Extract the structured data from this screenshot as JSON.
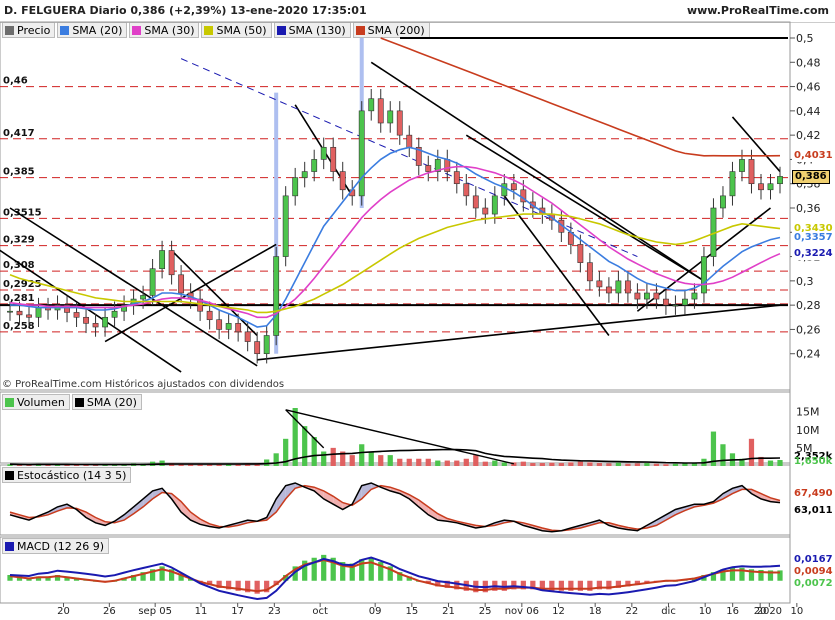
{
  "header": {
    "title": "D. FELGUERA Diario 0,386 (+2,39%) 13-ene-2020 17:35:01",
    "site": "www.ProRealTime.com"
  },
  "price_legend": [
    {
      "label": "Precio",
      "color": "#6d6d6d"
    },
    {
      "label": "SMA (20)",
      "color": "#3b7de0"
    },
    {
      "label": "SMA (30)",
      "color": "#e040c8"
    },
    {
      "label": "SMA (50)",
      "color": "#c8c800"
    },
    {
      "label": "SMA (130)",
      "color": "#1a1ab0"
    },
    {
      "label": "SMA (200)",
      "color": "#c83c1e"
    }
  ],
  "copyright": "© ProRealTime.com Históricos ajustados con dividendos",
  "volume_legend": {
    "label": "Volumen",
    "sma": "SMA (20)"
  },
  "stoch_legend": {
    "label": "Estocástico (14 3 5)"
  },
  "macd_legend": {
    "label": "MACD (12 26 9)"
  },
  "colors": {
    "up": "#4cc44c",
    "down": "#e06060",
    "sma20": "#3b7de0",
    "sma30": "#e040c8",
    "sma50": "#c8c800",
    "sma130": "#1a1ab0",
    "sma200": "#c83c1e"
  },
  "chart_data": [
    {
      "type": "line",
      "panel": "price",
      "ylim": [
        0.22,
        0.5
      ],
      "y_ticks": [
        "0,5",
        "0,48",
        "0,46",
        "0,44",
        "0,42",
        "0,4",
        "0,38",
        "0,36",
        "0,34",
        "0,32",
        "0,3",
        "0,28",
        "0,26",
        "0,24"
      ],
      "level_labels": [
        "0,46",
        "0,417",
        "0,385",
        "0,3515",
        "0,329",
        "0,308",
        "0,2925",
        "0,281",
        "0,258"
      ],
      "x_labels": [
        "20",
        "26",
        "sep 05",
        "11",
        "17",
        "23",
        "oct",
        "09",
        "15",
        "21",
        "25",
        "nov 06",
        "12",
        "18",
        "22",
        "dic",
        "10",
        "16",
        "20",
        "2020",
        "10"
      ],
      "value_badges": [
        {
          "text": "0,4031",
          "color": "#c83c1e"
        },
        {
          "text": "0,386",
          "color": "#000000"
        },
        {
          "text": "0,3430",
          "color": "#c8c800"
        },
        {
          "text": "0,3357",
          "color": "#3b7de0"
        },
        {
          "text": "0,3224",
          "color": "#1a1ab0"
        }
      ],
      "series": [
        {
          "name": "Precio",
          "values": [
            0.275,
            0.272,
            0.27,
            0.278,
            0.276,
            0.28,
            0.274,
            0.27,
            0.265,
            0.262,
            0.27,
            0.275,
            0.28,
            0.285,
            0.288,
            0.31,
            0.325,
            0.305,
            0.29,
            0.285,
            0.275,
            0.268,
            0.26,
            0.265,
            0.258,
            0.25,
            0.24,
            0.255,
            0.32,
            0.37,
            0.385,
            0.39,
            0.4,
            0.41,
            0.39,
            0.375,
            0.37,
            0.44,
            0.45,
            0.43,
            0.44,
            0.42,
            0.41,
            0.395,
            0.39,
            0.4,
            0.39,
            0.38,
            0.37,
            0.36,
            0.355,
            0.37,
            0.38,
            0.375,
            0.365,
            0.36,
            0.355,
            0.35,
            0.34,
            0.33,
            0.315,
            0.3,
            0.295,
            0.29,
            0.3,
            0.29,
            0.285,
            0.29,
            0.285,
            0.28,
            0.28,
            0.285,
            0.29,
            0.32,
            0.36,
            0.37,
            0.39,
            0.4,
            0.38,
            0.375,
            0.38,
            0.386
          ]
        },
        {
          "name": "SMA (20)",
          "values": [
            0.28,
            0.28,
            0.279,
            0.278,
            0.278,
            0.278,
            0.278,
            0.278,
            0.277,
            0.276,
            0.276,
            0.277,
            0.279,
            0.281,
            0.283,
            0.286,
            0.29,
            0.29,
            0.289,
            0.287,
            0.284,
            0.28,
            0.276,
            0.273,
            0.27,
            0.266,
            0.262,
            0.263,
            0.272,
            0.285,
            0.3,
            0.315,
            0.33,
            0.345,
            0.355,
            0.365,
            0.375,
            0.385,
            0.393,
            0.4,
            0.405,
            0.408,
            0.41,
            0.408,
            0.405,
            0.402,
            0.4,
            0.397,
            0.393,
            0.388,
            0.384,
            0.38,
            0.377,
            0.373,
            0.368,
            0.362,
            0.357,
            0.352,
            0.346,
            0.34,
            0.334,
            0.328,
            0.322,
            0.316,
            0.312,
            0.307,
            0.302,
            0.298,
            0.296,
            0.294,
            0.292,
            0.292,
            0.294,
            0.298,
            0.305,
            0.312,
            0.318,
            0.324,
            0.328,
            0.331,
            0.334,
            0.3357
          ]
        },
        {
          "name": "SMA (30)",
          "values": [
            0.282,
            0.281,
            0.28,
            0.28,
            0.279,
            0.279,
            0.279,
            0.279,
            0.278,
            0.278,
            0.278,
            0.278,
            0.279,
            0.28,
            0.281,
            0.283,
            0.285,
            0.286,
            0.286,
            0.285,
            0.284,
            0.282,
            0.279,
            0.277,
            0.275,
            0.273,
            0.27,
            0.27,
            0.273,
            0.279,
            0.285,
            0.293,
            0.302,
            0.312,
            0.322,
            0.332,
            0.342,
            0.352,
            0.36,
            0.367,
            0.373,
            0.378,
            0.383,
            0.386,
            0.389,
            0.391,
            0.393,
            0.394,
            0.394,
            0.393,
            0.391,
            0.389,
            0.386,
            0.383,
            0.379,
            0.374,
            0.369,
            0.364,
            0.358,
            0.352,
            0.346,
            0.34,
            0.334,
            0.328,
            0.323,
            0.318,
            0.314,
            0.31,
            0.306,
            0.303,
            0.3,
            0.298,
            0.297,
            0.297,
            0.298,
            0.3,
            0.303,
            0.307,
            0.311,
            0.315,
            0.319,
            0.3224
          ]
        },
        {
          "name": "SMA (50)",
          "values": [
            0.305,
            0.302,
            0.3,
            0.298,
            0.296,
            0.294,
            0.292,
            0.29,
            0.288,
            0.286,
            0.285,
            0.284,
            0.283,
            0.283,
            0.283,
            0.283,
            0.283,
            0.283,
            0.283,
            0.282,
            0.281,
            0.28,
            0.279,
            0.278,
            0.277,
            0.276,
            0.274,
            0.274,
            0.275,
            0.277,
            0.279,
            0.282,
            0.285,
            0.289,
            0.293,
            0.297,
            0.302,
            0.307,
            0.312,
            0.317,
            0.322,
            0.327,
            0.331,
            0.335,
            0.338,
            0.341,
            0.344,
            0.346,
            0.348,
            0.35,
            0.351,
            0.352,
            0.353,
            0.354,
            0.355,
            0.355,
            0.355,
            0.355,
            0.354,
            0.353,
            0.351,
            0.349,
            0.347,
            0.344,
            0.341,
            0.338,
            0.336,
            0.334,
            0.332,
            0.331,
            0.33,
            0.331,
            0.333,
            0.336,
            0.339,
            0.342,
            0.345,
            0.347,
            0.346,
            0.345,
            0.344,
            0.343
          ]
        },
        {
          "name": "SMA (200)",
          "values": [
            null,
            null,
            null,
            null,
            null,
            null,
            null,
            null,
            null,
            null,
            null,
            null,
            null,
            null,
            null,
            null,
            null,
            null,
            null,
            null,
            null,
            null,
            null,
            null,
            null,
            null,
            null,
            null,
            null,
            null,
            null,
            null,
            null,
            null,
            null,
            null,
            null,
            null,
            null,
            0.5,
            0.497,
            0.494,
            0.491,
            0.488,
            0.485,
            0.482,
            0.479,
            0.476,
            0.473,
            0.47,
            0.467,
            0.464,
            0.461,
            0.458,
            0.455,
            0.452,
            0.449,
            0.446,
            0.443,
            0.44,
            0.437,
            0.434,
            0.431,
            0.428,
            0.425,
            0.422,
            0.419,
            0.416,
            0.413,
            0.41,
            0.407,
            0.405,
            0.404,
            0.403,
            0.4031,
            0.403,
            0.403,
            0.403,
            0.403,
            0.403,
            0.403,
            0.4031
          ]
        }
      ]
    },
    {
      "type": "bar",
      "panel": "volume",
      "y_ticks": [
        "15M",
        "10M",
        "5M"
      ],
      "value_badges": [
        {
          "text": "2,352k",
          "color": "#000"
        },
        {
          "text": "1,650k",
          "color": "#4cc44c"
        }
      ],
      "values": [
        0.5,
        0.4,
        0.3,
        0.6,
        0.4,
        0.5,
        0.3,
        0.4,
        0.3,
        0.2,
        0.3,
        0.4,
        0.5,
        0.7,
        0.6,
        1.2,
        1.5,
        0.8,
        0.6,
        0.5,
        0.4,
        0.4,
        0.5,
        0.6,
        0.5,
        0.7,
        0.6,
        1.8,
        3.5,
        7.5,
        16,
        11,
        8,
        4,
        5,
        4,
        3,
        6,
        4,
        3,
        3,
        2,
        2,
        2,
        2,
        1.5,
        1.5,
        1.5,
        2,
        3,
        1.2,
        1.5,
        1.0,
        1.0,
        1.2,
        0.8,
        0.8,
        0.9,
        0.8,
        1.0,
        1.2,
        1.0,
        0.8,
        0.7,
        0.9,
        0.6,
        0.7,
        0.8,
        0.6,
        0.5,
        0.6,
        0.7,
        0.9,
        2.0,
        9.5,
        6.0,
        3.5,
        2.0,
        7.5,
        2.5,
        1.5,
        1.65
      ]
    },
    {
      "type": "line",
      "panel": "stochastic",
      "ylim": [
        0,
        100
      ],
      "value_badges": [
        {
          "text": "67,490",
          "color": "#c83c1e"
        },
        {
          "text": "63,011",
          "color": "#000"
        }
      ],
      "series": [
        {
          "name": "%K",
          "values": [
            40,
            35,
            30,
            38,
            45,
            55,
            60,
            50,
            35,
            25,
            20,
            28,
            40,
            55,
            70,
            85,
            90,
            70,
            45,
            30,
            22,
            18,
            15,
            20,
            25,
            30,
            28,
            35,
            70,
            95,
            100,
            92,
            85,
            70,
            60,
            50,
            60,
            95,
            100,
            92,
            85,
            80,
            70,
            55,
            40,
            30,
            28,
            25,
            20,
            15,
            18,
            25,
            30,
            28,
            20,
            15,
            10,
            8,
            10,
            15,
            20,
            25,
            30,
            20,
            15,
            12,
            10,
            20,
            30,
            40,
            50,
            55,
            60,
            60,
            65,
            80,
            90,
            95,
            80,
            70,
            65,
            63
          ]
        },
        {
          "name": "%D",
          "values": [
            45,
            40,
            35,
            36,
            40,
            47,
            53,
            52,
            45,
            35,
            27,
            25,
            30,
            42,
            55,
            70,
            82,
            80,
            65,
            45,
            32,
            23,
            18,
            17,
            20,
            25,
            28,
            30,
            45,
            70,
            90,
            95,
            92,
            85,
            75,
            63,
            58,
            70,
            88,
            95,
            92,
            86,
            78,
            68,
            55,
            42,
            33,
            28,
            24,
            20,
            18,
            20,
            25,
            28,
            25,
            20,
            15,
            11,
            10,
            12,
            15,
            20,
            25,
            25,
            20,
            16,
            13,
            15,
            20,
            30,
            40,
            48,
            55,
            58,
            62,
            70,
            80,
            88,
            88,
            80,
            72,
            67
          ]
        }
      ]
    },
    {
      "type": "bar",
      "panel": "macd",
      "value_badges": [
        {
          "text": "0,0167",
          "color": "#1a1ab0"
        },
        {
          "text": "0,0094",
          "color": "#c83c1e"
        },
        {
          "text": "0,0072",
          "color": "#4cc44c"
        }
      ],
      "values": [
        0.004,
        0.003,
        0.002,
        0.003,
        0.003,
        0.004,
        0.003,
        0.002,
        0.001,
        0.0,
        -0.001,
        0.0,
        0.002,
        0.004,
        0.006,
        0.008,
        0.01,
        0.008,
        0.005,
        0.002,
        -0.001,
        -0.003,
        -0.005,
        -0.006,
        -0.007,
        -0.008,
        -0.009,
        -0.008,
        -0.003,
        0.004,
        0.01,
        0.014,
        0.016,
        0.018,
        0.016,
        0.013,
        0.012,
        0.015,
        0.016,
        0.013,
        0.01,
        0.006,
        0.003,
        0.0,
        -0.002,
        -0.004,
        -0.005,
        -0.006,
        -0.007,
        -0.008,
        -0.008,
        -0.007,
        -0.007,
        -0.006,
        -0.006,
        -0.006,
        -0.007,
        -0.007,
        -0.007,
        -0.007,
        -0.007,
        -0.007,
        -0.006,
        -0.006,
        -0.005,
        -0.004,
        -0.003,
        -0.002,
        -0.001,
        0.0,
        0.0,
        0.001,
        0.002,
        0.004,
        0.006,
        0.008,
        0.009,
        0.009,
        0.008,
        0.0075,
        0.0072,
        0.0072
      ]
    }
  ]
}
